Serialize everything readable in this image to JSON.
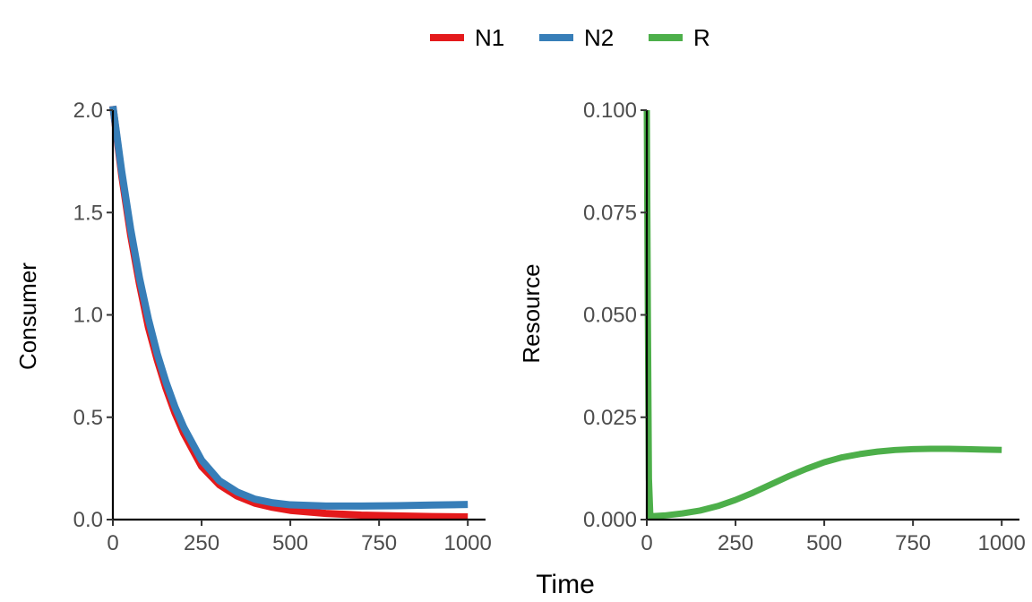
{
  "figure": {
    "xlabel": "Time"
  },
  "legend": {
    "placement": "top-center",
    "entries": [
      {
        "key": "N1",
        "label": "N1",
        "color": "#e41a1c"
      },
      {
        "key": "N2",
        "label": "N2",
        "color": "#377eb8"
      },
      {
        "key": "R",
        "label": "R",
        "color": "#4daf4a"
      }
    ]
  },
  "chart_data": [
    {
      "type": "line",
      "id": "consumer",
      "ylabel": "Consumer",
      "xlim": [
        0,
        1050
      ],
      "ylim": [
        0,
        2.0
      ],
      "xticks": [
        0,
        250,
        500,
        750,
        1000
      ],
      "xtick_labels": [
        "0",
        "250",
        "500",
        "750",
        "1000"
      ],
      "yticks": [
        0,
        0.5,
        1.0,
        1.5,
        2.0
      ],
      "ytick_labels": [
        "0.0",
        "0.5",
        "1.0",
        "1.5",
        "2.0"
      ],
      "grid": false,
      "series": [
        {
          "name": "N1",
          "color": "#e41a1c",
          "x": [
            0,
            25,
            50,
            75,
            100,
            125,
            150,
            175,
            200,
            250,
            300,
            350,
            400,
            450,
            500,
            600,
            700,
            800,
            900,
            1000
          ],
          "y": [
            2.02,
            1.68,
            1.39,
            1.15,
            0.94,
            0.78,
            0.64,
            0.52,
            0.42,
            0.26,
            0.17,
            0.115,
            0.08,
            0.06,
            0.045,
            0.03,
            0.022,
            0.018,
            0.015,
            0.013
          ]
        },
        {
          "name": "N2",
          "color": "#377eb8",
          "x": [
            0,
            25,
            50,
            75,
            100,
            125,
            150,
            175,
            200,
            250,
            300,
            350,
            400,
            450,
            500,
            600,
            700,
            800,
            900,
            1000
          ],
          "y": [
            2.02,
            1.7,
            1.42,
            1.18,
            0.98,
            0.81,
            0.67,
            0.55,
            0.45,
            0.29,
            0.19,
            0.135,
            0.1,
            0.082,
            0.072,
            0.066,
            0.066,
            0.068,
            0.071,
            0.074
          ]
        }
      ]
    },
    {
      "type": "line",
      "id": "resource",
      "ylabel": "Resource",
      "xlim": [
        0,
        1050
      ],
      "ylim": [
        0,
        0.1
      ],
      "xticks": [
        0,
        250,
        500,
        750,
        1000
      ],
      "xtick_labels": [
        "0",
        "250",
        "500",
        "750",
        "1000"
      ],
      "yticks": [
        0,
        0.025,
        0.05,
        0.075,
        0.1
      ],
      "ytick_labels": [
        "0.000",
        "0.025",
        "0.050",
        "0.075",
        "0.100"
      ],
      "grid": false,
      "series": [
        {
          "name": "R",
          "color": "#4daf4a",
          "x": [
            0,
            3,
            6,
            10,
            50,
            100,
            150,
            200,
            250,
            300,
            350,
            400,
            450,
            500,
            550,
            600,
            650,
            700,
            750,
            800,
            850,
            900,
            950,
            1000
          ],
          "y": [
            0.1,
            0.05,
            0.01,
            0.0008,
            0.001,
            0.0015,
            0.0022,
            0.0033,
            0.0048,
            0.0066,
            0.0086,
            0.0106,
            0.0124,
            0.014,
            0.0152,
            0.016,
            0.0166,
            0.017,
            0.0172,
            0.0173,
            0.0173,
            0.0172,
            0.0171,
            0.017
          ]
        }
      ]
    }
  ]
}
